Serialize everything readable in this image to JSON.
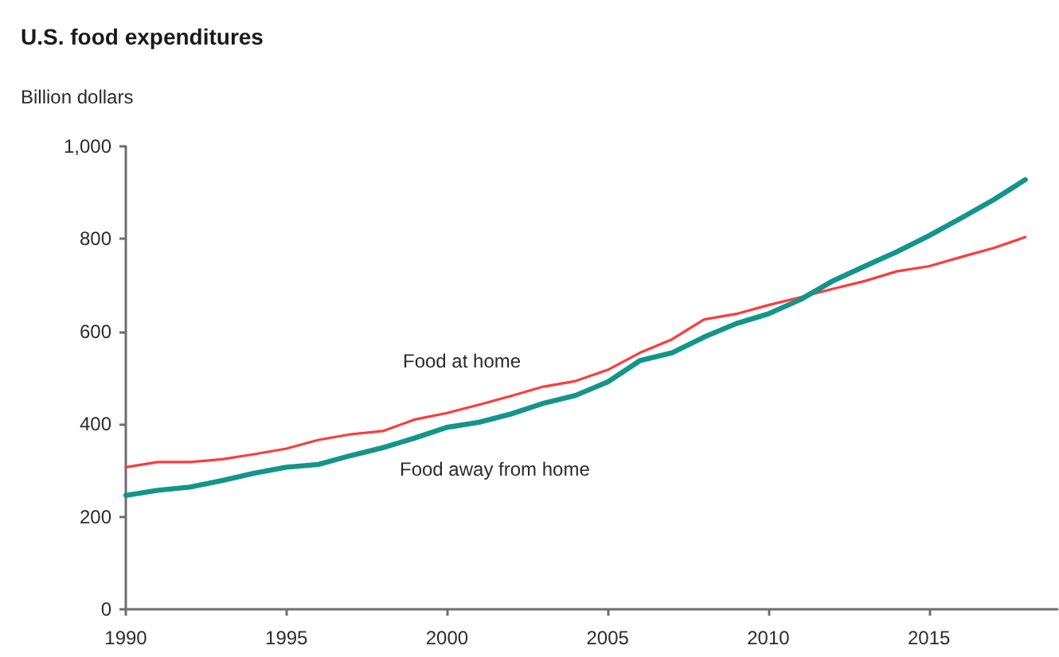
{
  "chart_data": {
    "type": "line",
    "title": "U.S. food expenditures",
    "ylabel": "Billion dollars",
    "x": [
      1990,
      1991,
      1992,
      1993,
      1994,
      1995,
      1996,
      1997,
      1998,
      1999,
      2000,
      2001,
      2002,
      2003,
      2004,
      2005,
      2006,
      2007,
      2008,
      2009,
      2010,
      2011,
      2012,
      2013,
      2014,
      2015,
      2016,
      2017,
      2018
    ],
    "series": [
      {
        "name": "Food at home",
        "color": "#ff3b3b",
        "values": [
          307,
          318,
          318,
          324,
          335,
          347,
          366,
          378,
          385,
          410,
          424,
          442,
          461,
          481,
          493,
          517,
          554,
          583,
          626,
          638,
          657,
          674,
          692,
          709,
          730,
          741,
          761,
          780,
          804
        ]
      },
      {
        "name": "Food away from home",
        "color": "#13958a",
        "values": [
          246,
          257,
          264,
          278,
          294,
          307,
          313,
          332,
          349,
          370,
          393,
          404,
          422,
          445,
          462,
          491,
          537,
          554,
          588,
          617,
          638,
          669,
          709,
          741,
          772,
          807,
          845,
          884,
          928
        ]
      }
    ],
    "xlim": [
      1990,
      2019
    ],
    "xticks": [
      1990,
      1995,
      2000,
      2005,
      2010,
      2015
    ],
    "ylim": [
      0,
      1000
    ],
    "yticks": [
      0,
      200,
      400,
      600,
      800,
      {
        "value": 1000,
        "label": "1,000"
      }
    ],
    "marker": "none"
  }
}
